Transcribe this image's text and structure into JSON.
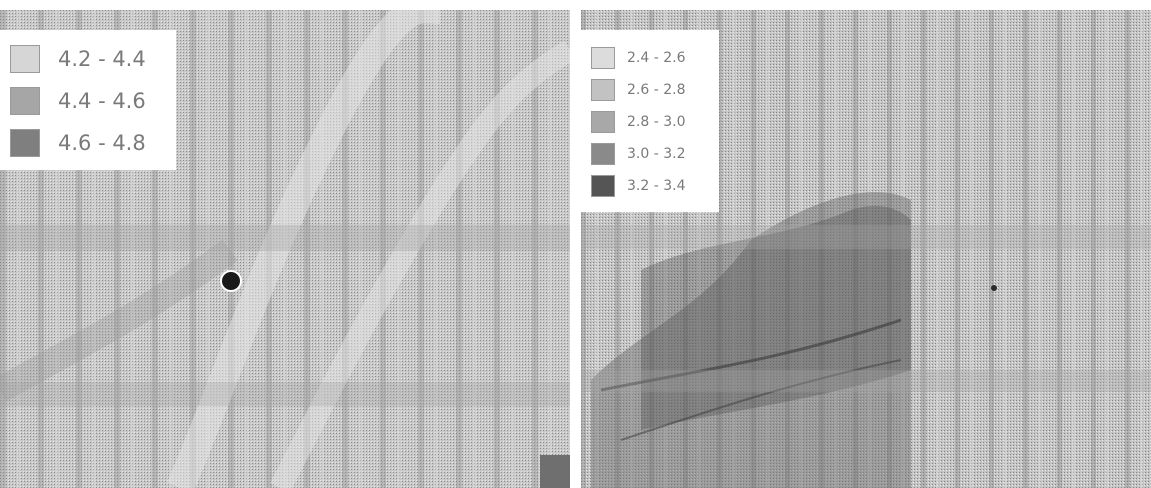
{
  "maps": {
    "left": {
      "legend": [
        {
          "range": "4.2 - 4.4",
          "color": "#d6d6d6"
        },
        {
          "range": "4.4 - 4.6",
          "color": "#a6a6a6"
        },
        {
          "range": "4.6 - 4.8",
          "color": "#7f7f7f"
        }
      ]
    },
    "right": {
      "legend": [
        {
          "range": "2.4 - 2.6",
          "color": "#dcdcdc"
        },
        {
          "range": "2.6 - 2.8",
          "color": "#c2c2c2"
        },
        {
          "range": "2.8 - 3.0",
          "color": "#a8a8a8"
        },
        {
          "range": "3.0 - 3.2",
          "color": "#8a8a8a"
        },
        {
          "range": "3.2 - 3.4",
          "color": "#555555"
        }
      ]
    }
  }
}
